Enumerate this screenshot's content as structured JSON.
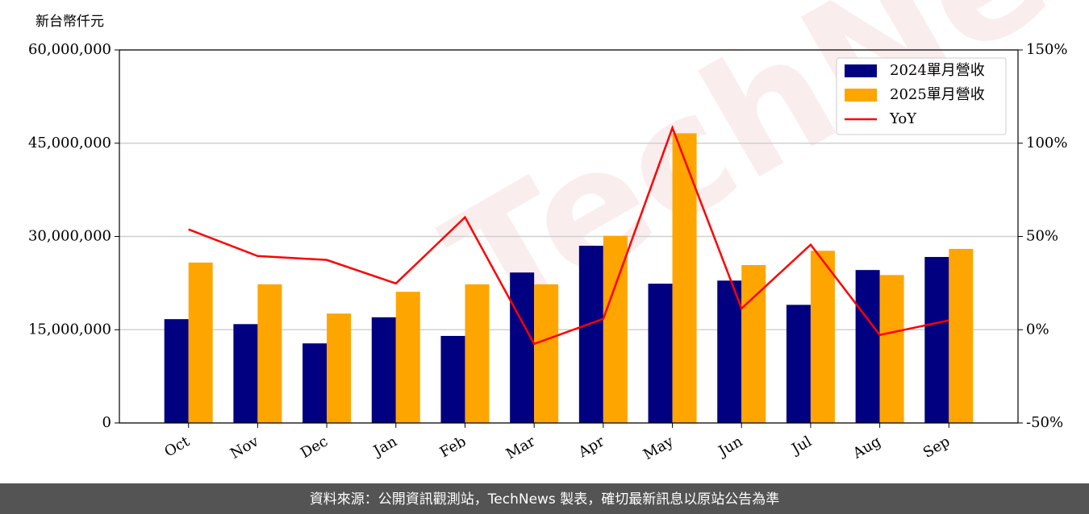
{
  "chart_data": {
    "type": "bar_line",
    "unit_label": "新台幣仟元",
    "watermark": "TechNews",
    "categories": [
      "Oct",
      "Nov",
      "Dec",
      "Jan",
      "Feb",
      "Mar",
      "Apr",
      "May",
      "Jun",
      "Jul",
      "Aug",
      "Sep"
    ],
    "series": [
      {
        "name": "2024單月營收",
        "color": "#000080",
        "type": "bar",
        "values": [
          16700000,
          15900000,
          12800000,
          17000000,
          14000000,
          24200000,
          28500000,
          22400000,
          22900000,
          19000000,
          24600000,
          26700000
        ]
      },
      {
        "name": "2025單月營收",
        "color": "#ffa500",
        "type": "bar",
        "values": [
          25800000,
          22300000,
          17600000,
          21100000,
          22300000,
          22300000,
          30100000,
          46600000,
          25400000,
          27700000,
          23800000,
          28000000
        ]
      },
      {
        "name": "YoY",
        "color": "#ff0000",
        "type": "line",
        "axis": "y2",
        "values": [
          53.8,
          39.5,
          37.4,
          24.8,
          60.3,
          -7.6,
          5.8,
          108.2,
          11.4,
          45.6,
          -2.8,
          5.0
        ]
      }
    ],
    "ylim": [
      0,
      60000000
    ],
    "yticks": [
      0,
      {
        "value": 15000000,
        "label": "15,000,000"
      },
      {
        "value": 30000000,
        "label": "30,000,000"
      },
      {
        "value": 45000000,
        "label": "45,000,000"
      },
      {
        "value": 60000000,
        "label": "60,000,000"
      }
    ],
    "y2lim": [
      -50,
      150
    ],
    "y2ticks": [
      {
        "value": -50,
        "label": "-50%"
      },
      {
        "value": 0,
        "label": "0%"
      },
      {
        "value": 50,
        "label": "50%"
      },
      {
        "value": 100,
        "label": "100%"
      },
      {
        "value": 150,
        "label": "150%"
      }
    ],
    "grid": true,
    "legend": "upper right",
    "footer": "資料來源：公開資訊觀測站，TechNews 製表，確切最新訊息以原站公告為準"
  }
}
